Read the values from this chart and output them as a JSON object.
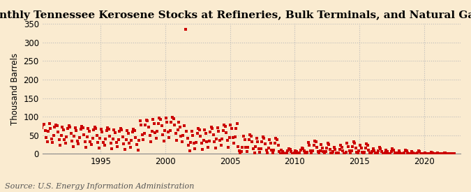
{
  "title": "Monthly Tennessee Kerosene Stocks at Refineries, Bulk Terminals, and Natural Gas Plants",
  "ylabel": "Thousand Barrels",
  "source": "Source: U.S. Energy Information Administration",
  "background_color": "#faebd0",
  "marker_color": "#cc0000",
  "marker": "s",
  "marker_size": 7,
  "ylim": [
    0,
    350
  ],
  "yticks": [
    0,
    50,
    100,
    150,
    200,
    250,
    300,
    350
  ],
  "xlim_start": 1990.5,
  "xlim_end": 2022.8,
  "xticks": [
    1995,
    2000,
    2005,
    2010,
    2015,
    2020
  ],
  "grid_color": "#bbbbbb",
  "title_fontsize": 11,
  "ylabel_fontsize": 8.5,
  "tick_fontsize": 8.5,
  "source_fontsize": 8,
  "data": [
    [
      1990,
      1,
      76
    ],
    [
      1990,
      2,
      50
    ],
    [
      1990,
      3,
      28
    ],
    [
      1990,
      4,
      24
    ],
    [
      1990,
      5,
      56
    ],
    [
      1990,
      6,
      70
    ],
    [
      1990,
      7,
      78
    ],
    [
      1990,
      8,
      80
    ],
    [
      1990,
      9,
      62
    ],
    [
      1990,
      10,
      44
    ],
    [
      1990,
      11,
      32
    ],
    [
      1990,
      12,
      60
    ],
    [
      1991,
      1,
      82
    ],
    [
      1991,
      2,
      68
    ],
    [
      1991,
      3,
      40
    ],
    [
      1991,
      4,
      30
    ],
    [
      1991,
      5,
      50
    ],
    [
      1991,
      6,
      72
    ],
    [
      1991,
      7,
      78
    ],
    [
      1991,
      8,
      75
    ],
    [
      1991,
      9,
      58
    ],
    [
      1991,
      10,
      38
    ],
    [
      1991,
      11,
      22
    ],
    [
      1991,
      12,
      50
    ],
    [
      1992,
      1,
      72
    ],
    [
      1992,
      2,
      65
    ],
    [
      1992,
      3,
      38
    ],
    [
      1992,
      4,
      28
    ],
    [
      1992,
      5,
      46
    ],
    [
      1992,
      6,
      68
    ],
    [
      1992,
      7,
      76
    ],
    [
      1992,
      8,
      72
    ],
    [
      1992,
      9,
      55
    ],
    [
      1992,
      10,
      35
    ],
    [
      1992,
      11,
      20
    ],
    [
      1992,
      12,
      48
    ],
    [
      1993,
      1,
      70
    ],
    [
      1993,
      2,
      62
    ],
    [
      1993,
      3,
      35
    ],
    [
      1993,
      4,
      26
    ],
    [
      1993,
      5,
      44
    ],
    [
      1993,
      6,
      66
    ],
    [
      1993,
      7,
      74
    ],
    [
      1993,
      8,
      70
    ],
    [
      1993,
      9,
      52
    ],
    [
      1993,
      10,
      32
    ],
    [
      1993,
      11,
      18
    ],
    [
      1993,
      12,
      45
    ],
    [
      1994,
      1,
      68
    ],
    [
      1994,
      2,
      60
    ],
    [
      1994,
      3,
      33
    ],
    [
      1994,
      4,
      24
    ],
    [
      1994,
      5,
      42
    ],
    [
      1994,
      6,
      64
    ],
    [
      1994,
      7,
      72
    ],
    [
      1994,
      8,
      68
    ],
    [
      1994,
      9,
      50
    ],
    [
      1994,
      10,
      30
    ],
    [
      1994,
      11,
      16
    ],
    [
      1994,
      12,
      42
    ],
    [
      1995,
      1,
      66
    ],
    [
      1995,
      2,
      58
    ],
    [
      1995,
      3,
      31
    ],
    [
      1995,
      4,
      22
    ],
    [
      1995,
      5,
      40
    ],
    [
      1995,
      6,
      62
    ],
    [
      1995,
      7,
      70
    ],
    [
      1995,
      8,
      66
    ],
    [
      1995,
      9,
      48
    ],
    [
      1995,
      10,
      28
    ],
    [
      1995,
      11,
      14
    ],
    [
      1995,
      12,
      40
    ],
    [
      1996,
      1,
      64
    ],
    [
      1996,
      2,
      56
    ],
    [
      1996,
      3,
      30
    ],
    [
      1996,
      4,
      20
    ],
    [
      1996,
      5,
      38
    ],
    [
      1996,
      6,
      60
    ],
    [
      1996,
      7,
      68
    ],
    [
      1996,
      8,
      64
    ],
    [
      1996,
      9,
      46
    ],
    [
      1996,
      10,
      26
    ],
    [
      1996,
      11,
      12
    ],
    [
      1996,
      12,
      38
    ],
    [
      1997,
      1,
      62
    ],
    [
      1997,
      2,
      54
    ],
    [
      1997,
      3,
      28
    ],
    [
      1997,
      4,
      18
    ],
    [
      1997,
      5,
      36
    ],
    [
      1997,
      6,
      58
    ],
    [
      1997,
      7,
      66
    ],
    [
      1997,
      8,
      62
    ],
    [
      1997,
      9,
      44
    ],
    [
      1997,
      10,
      24
    ],
    [
      1997,
      11,
      10
    ],
    [
      1997,
      12,
      36
    ],
    [
      1998,
      1,
      88
    ],
    [
      1998,
      2,
      78
    ],
    [
      1998,
      3,
      52
    ],
    [
      1998,
      4,
      38
    ],
    [
      1998,
      5,
      55
    ],
    [
      1998,
      6,
      78
    ],
    [
      1998,
      7,
      90
    ],
    [
      1998,
      8,
      88
    ],
    [
      1998,
      9,
      72
    ],
    [
      1998,
      10,
      50
    ],
    [
      1998,
      11,
      32
    ],
    [
      1998,
      12,
      60
    ],
    [
      1999,
      1,
      92
    ],
    [
      1999,
      2,
      82
    ],
    [
      1999,
      3,
      56
    ],
    [
      1999,
      4,
      42
    ],
    [
      1999,
      5,
      60
    ],
    [
      1999,
      6,
      82
    ],
    [
      1999,
      7,
      96
    ],
    [
      1999,
      8,
      92
    ],
    [
      1999,
      9,
      75
    ],
    [
      1999,
      10,
      52
    ],
    [
      1999,
      11,
      34
    ],
    [
      1999,
      12,
      62
    ],
    [
      2000,
      1,
      96
    ],
    [
      2000,
      2,
      85
    ],
    [
      2000,
      3,
      58
    ],
    [
      2000,
      4,
      44
    ],
    [
      2000,
      5,
      62
    ],
    [
      2000,
      6,
      85
    ],
    [
      2000,
      7,
      98
    ],
    [
      2000,
      8,
      95
    ],
    [
      2000,
      9,
      78
    ],
    [
      2000,
      10,
      55
    ],
    [
      2000,
      11,
      36
    ],
    [
      2000,
      12,
      65
    ],
    [
      2001,
      1,
      85
    ],
    [
      2001,
      2,
      72
    ],
    [
      2001,
      3,
      48
    ],
    [
      2001,
      4,
      32
    ],
    [
      2001,
      5,
      50
    ],
    [
      2001,
      6,
      75
    ],
    [
      2001,
      7,
      335
    ],
    [
      2001,
      8,
      60
    ],
    [
      2001,
      9,
      42
    ],
    [
      2001,
      10,
      22
    ],
    [
      2001,
      11,
      8
    ],
    [
      2001,
      12,
      30
    ],
    [
      2002,
      1,
      60
    ],
    [
      2002,
      2,
      50
    ],
    [
      2002,
      3,
      28
    ],
    [
      2002,
      4,
      14
    ],
    [
      2002,
      5,
      30
    ],
    [
      2002,
      6,
      55
    ],
    [
      2002,
      7,
      68
    ],
    [
      2002,
      8,
      65
    ],
    [
      2002,
      9,
      48
    ],
    [
      2002,
      10,
      28
    ],
    [
      2002,
      11,
      12
    ],
    [
      2002,
      12,
      36
    ],
    [
      2003,
      1,
      65
    ],
    [
      2003,
      2,
      55
    ],
    [
      2003,
      3,
      32
    ],
    [
      2003,
      4,
      18
    ],
    [
      2003,
      5,
      35
    ],
    [
      2003,
      6,
      58
    ],
    [
      2003,
      7,
      72
    ],
    [
      2003,
      8,
      68
    ],
    [
      2003,
      9,
      52
    ],
    [
      2003,
      10,
      32
    ],
    [
      2003,
      11,
      15
    ],
    [
      2003,
      12,
      40
    ],
    [
      2004,
      1,
      70
    ],
    [
      2004,
      2,
      60
    ],
    [
      2004,
      3,
      36
    ],
    [
      2004,
      4,
      22
    ],
    [
      2004,
      5,
      40
    ],
    [
      2004,
      6,
      62
    ],
    [
      2004,
      7,
      78
    ],
    [
      2004,
      8,
      74
    ],
    [
      2004,
      9,
      56
    ],
    [
      2004,
      10,
      36
    ],
    [
      2004,
      11,
      18
    ],
    [
      2004,
      12,
      44
    ],
    [
      2005,
      1,
      78
    ],
    [
      2005,
      2,
      68
    ],
    [
      2005,
      3,
      44
    ],
    [
      2005,
      4,
      28
    ],
    [
      2005,
      5,
      46
    ],
    [
      2005,
      6,
      68
    ],
    [
      2005,
      7,
      82
    ],
    [
      2005,
      8,
      20
    ],
    [
      2005,
      9,
      8
    ],
    [
      2005,
      10,
      2
    ],
    [
      2005,
      11,
      5
    ],
    [
      2005,
      12,
      18
    ],
    [
      2006,
      1,
      48
    ],
    [
      2006,
      2,
      38
    ],
    [
      2006,
      3,
      18
    ],
    [
      2006,
      4,
      6
    ],
    [
      2006,
      5,
      18
    ],
    [
      2006,
      6,
      38
    ],
    [
      2006,
      7,
      52
    ],
    [
      2006,
      8,
      48
    ],
    [
      2006,
      9,
      32
    ],
    [
      2006,
      10,
      14
    ],
    [
      2006,
      11,
      3
    ],
    [
      2006,
      12,
      20
    ],
    [
      2007,
      1,
      42
    ],
    [
      2007,
      2,
      32
    ],
    [
      2007,
      3,
      14
    ],
    [
      2007,
      4,
      4
    ],
    [
      2007,
      5,
      14
    ],
    [
      2007,
      6,
      32
    ],
    [
      2007,
      7,
      46
    ],
    [
      2007,
      8,
      42
    ],
    [
      2007,
      9,
      26
    ],
    [
      2007,
      10,
      10
    ],
    [
      2007,
      11,
      2
    ],
    [
      2007,
      12,
      15
    ],
    [
      2008,
      1,
      38
    ],
    [
      2008,
      2,
      28
    ],
    [
      2008,
      3,
      10
    ],
    [
      2008,
      4,
      2
    ],
    [
      2008,
      5,
      10
    ],
    [
      2008,
      6,
      28
    ],
    [
      2008,
      7,
      42
    ],
    [
      2008,
      8,
      38
    ],
    [
      2008,
      9,
      22
    ],
    [
      2008,
      10,
      6
    ],
    [
      2008,
      11,
      1
    ],
    [
      2008,
      12,
      10
    ],
    [
      2009,
      1,
      5
    ],
    [
      2009,
      2,
      2
    ],
    [
      2009,
      3,
      1
    ],
    [
      2009,
      4,
      1
    ],
    [
      2009,
      5,
      3
    ],
    [
      2009,
      6,
      8
    ],
    [
      2009,
      7,
      14
    ],
    [
      2009,
      8,
      12
    ],
    [
      2009,
      9,
      6
    ],
    [
      2009,
      10,
      1
    ],
    [
      2009,
      11,
      1
    ],
    [
      2009,
      12,
      3
    ],
    [
      2010,
      1,
      8
    ],
    [
      2010,
      2,
      5
    ],
    [
      2010,
      3,
      2
    ],
    [
      2010,
      4,
      1
    ],
    [
      2010,
      5,
      3
    ],
    [
      2010,
      6,
      10
    ],
    [
      2010,
      7,
      16
    ],
    [
      2010,
      8,
      14
    ],
    [
      2010,
      9,
      8
    ],
    [
      2010,
      10,
      2
    ],
    [
      2010,
      11,
      1
    ],
    [
      2010,
      12,
      4
    ],
    [
      2011,
      1,
      30
    ],
    [
      2011,
      2,
      22
    ],
    [
      2011,
      3,
      8
    ],
    [
      2011,
      4,
      2
    ],
    [
      2011,
      5,
      8
    ],
    [
      2011,
      6,
      22
    ],
    [
      2011,
      7,
      35
    ],
    [
      2011,
      8,
      32
    ],
    [
      2011,
      9,
      18
    ],
    [
      2011,
      10,
      5
    ],
    [
      2011,
      11,
      1
    ],
    [
      2011,
      12,
      8
    ],
    [
      2012,
      1,
      24
    ],
    [
      2012,
      2,
      16
    ],
    [
      2012,
      3,
      5
    ],
    [
      2012,
      4,
      1
    ],
    [
      2012,
      5,
      5
    ],
    [
      2012,
      6,
      16
    ],
    [
      2012,
      7,
      28
    ],
    [
      2012,
      8,
      24
    ],
    [
      2012,
      9,
      12
    ],
    [
      2012,
      10,
      3
    ],
    [
      2012,
      11,
      1
    ],
    [
      2012,
      12,
      5
    ],
    [
      2013,
      1,
      18
    ],
    [
      2013,
      2,
      12
    ],
    [
      2013,
      3,
      3
    ],
    [
      2013,
      4,
      1
    ],
    [
      2013,
      5,
      3
    ],
    [
      2013,
      6,
      12
    ],
    [
      2013,
      7,
      22
    ],
    [
      2013,
      8,
      18
    ],
    [
      2013,
      9,
      8
    ],
    [
      2013,
      10,
      1
    ],
    [
      2013,
      11,
      1
    ],
    [
      2013,
      12,
      4
    ],
    [
      2014,
      1,
      28
    ],
    [
      2014,
      2,
      20
    ],
    [
      2014,
      3,
      7
    ],
    [
      2014,
      4,
      1
    ],
    [
      2014,
      5,
      7
    ],
    [
      2014,
      6,
      20
    ],
    [
      2014,
      7,
      32
    ],
    [
      2014,
      8,
      28
    ],
    [
      2014,
      9,
      15
    ],
    [
      2014,
      10,
      4
    ],
    [
      2014,
      11,
      1
    ],
    [
      2014,
      12,
      7
    ],
    [
      2015,
      1,
      22
    ],
    [
      2015,
      2,
      15
    ],
    [
      2015,
      3,
      4
    ],
    [
      2015,
      4,
      1
    ],
    [
      2015,
      5,
      4
    ],
    [
      2015,
      6,
      15
    ],
    [
      2015,
      7,
      26
    ],
    [
      2015,
      8,
      22
    ],
    [
      2015,
      9,
      10
    ],
    [
      2015,
      10,
      2
    ],
    [
      2015,
      11,
      1
    ],
    [
      2015,
      12,
      5
    ],
    [
      2016,
      1,
      14
    ],
    [
      2016,
      2,
      8
    ],
    [
      2016,
      3,
      2
    ],
    [
      2016,
      4,
      1
    ],
    [
      2016,
      5,
      2
    ],
    [
      2016,
      6,
      8
    ],
    [
      2016,
      7,
      18
    ],
    [
      2016,
      8,
      14
    ],
    [
      2016,
      9,
      5
    ],
    [
      2016,
      10,
      1
    ],
    [
      2016,
      11,
      1
    ],
    [
      2016,
      12,
      3
    ],
    [
      2017,
      1,
      10
    ],
    [
      2017,
      2,
      5
    ],
    [
      2017,
      3,
      1
    ],
    [
      2017,
      4,
      1
    ],
    [
      2017,
      5,
      1
    ],
    [
      2017,
      6,
      5
    ],
    [
      2017,
      7,
      14
    ],
    [
      2017,
      8,
      10
    ],
    [
      2017,
      9,
      3
    ],
    [
      2017,
      10,
      1
    ],
    [
      2017,
      11,
      1
    ],
    [
      2017,
      12,
      2
    ],
    [
      2018,
      1,
      8
    ],
    [
      2018,
      2,
      3
    ],
    [
      2018,
      3,
      1
    ],
    [
      2018,
      4,
      1
    ],
    [
      2018,
      5,
      1
    ],
    [
      2018,
      6,
      3
    ],
    [
      2018,
      7,
      10
    ],
    [
      2018,
      8,
      8
    ],
    [
      2018,
      9,
      2
    ],
    [
      2018,
      10,
      1
    ],
    [
      2018,
      11,
      1
    ],
    [
      2018,
      12,
      1
    ],
    [
      2019,
      1,
      5
    ],
    [
      2019,
      2,
      2
    ],
    [
      2019,
      3,
      1
    ],
    [
      2019,
      4,
      1
    ],
    [
      2019,
      5,
      1
    ],
    [
      2019,
      6,
      2
    ],
    [
      2019,
      7,
      7
    ],
    [
      2019,
      8,
      5
    ],
    [
      2019,
      9,
      1
    ],
    [
      2019,
      10,
      1
    ],
    [
      2019,
      11,
      1
    ],
    [
      2019,
      12,
      1
    ],
    [
      2020,
      1,
      3
    ],
    [
      2020,
      2,
      1
    ],
    [
      2020,
      3,
      1
    ],
    [
      2020,
      4,
      1
    ],
    [
      2020,
      5,
      1
    ],
    [
      2020,
      6,
      1
    ],
    [
      2020,
      7,
      4
    ],
    [
      2020,
      8,
      3
    ],
    [
      2020,
      9,
      1
    ],
    [
      2020,
      10,
      1
    ],
    [
      2020,
      11,
      1
    ],
    [
      2020,
      12,
      1
    ],
    [
      2021,
      1,
      2
    ],
    [
      2021,
      2,
      1
    ],
    [
      2021,
      3,
      1
    ],
    [
      2021,
      4,
      1
    ],
    [
      2021,
      5,
      1
    ],
    [
      2021,
      6,
      1
    ],
    [
      2021,
      7,
      2
    ],
    [
      2021,
      8,
      2
    ],
    [
      2021,
      9,
      1
    ],
    [
      2021,
      10,
      1
    ],
    [
      2021,
      11,
      1
    ],
    [
      2021,
      12,
      1
    ],
    [
      2022,
      1,
      1
    ],
    [
      2022,
      2,
      1
    ],
    [
      2022,
      3,
      1
    ],
    [
      2022,
      4,
      1
    ]
  ]
}
